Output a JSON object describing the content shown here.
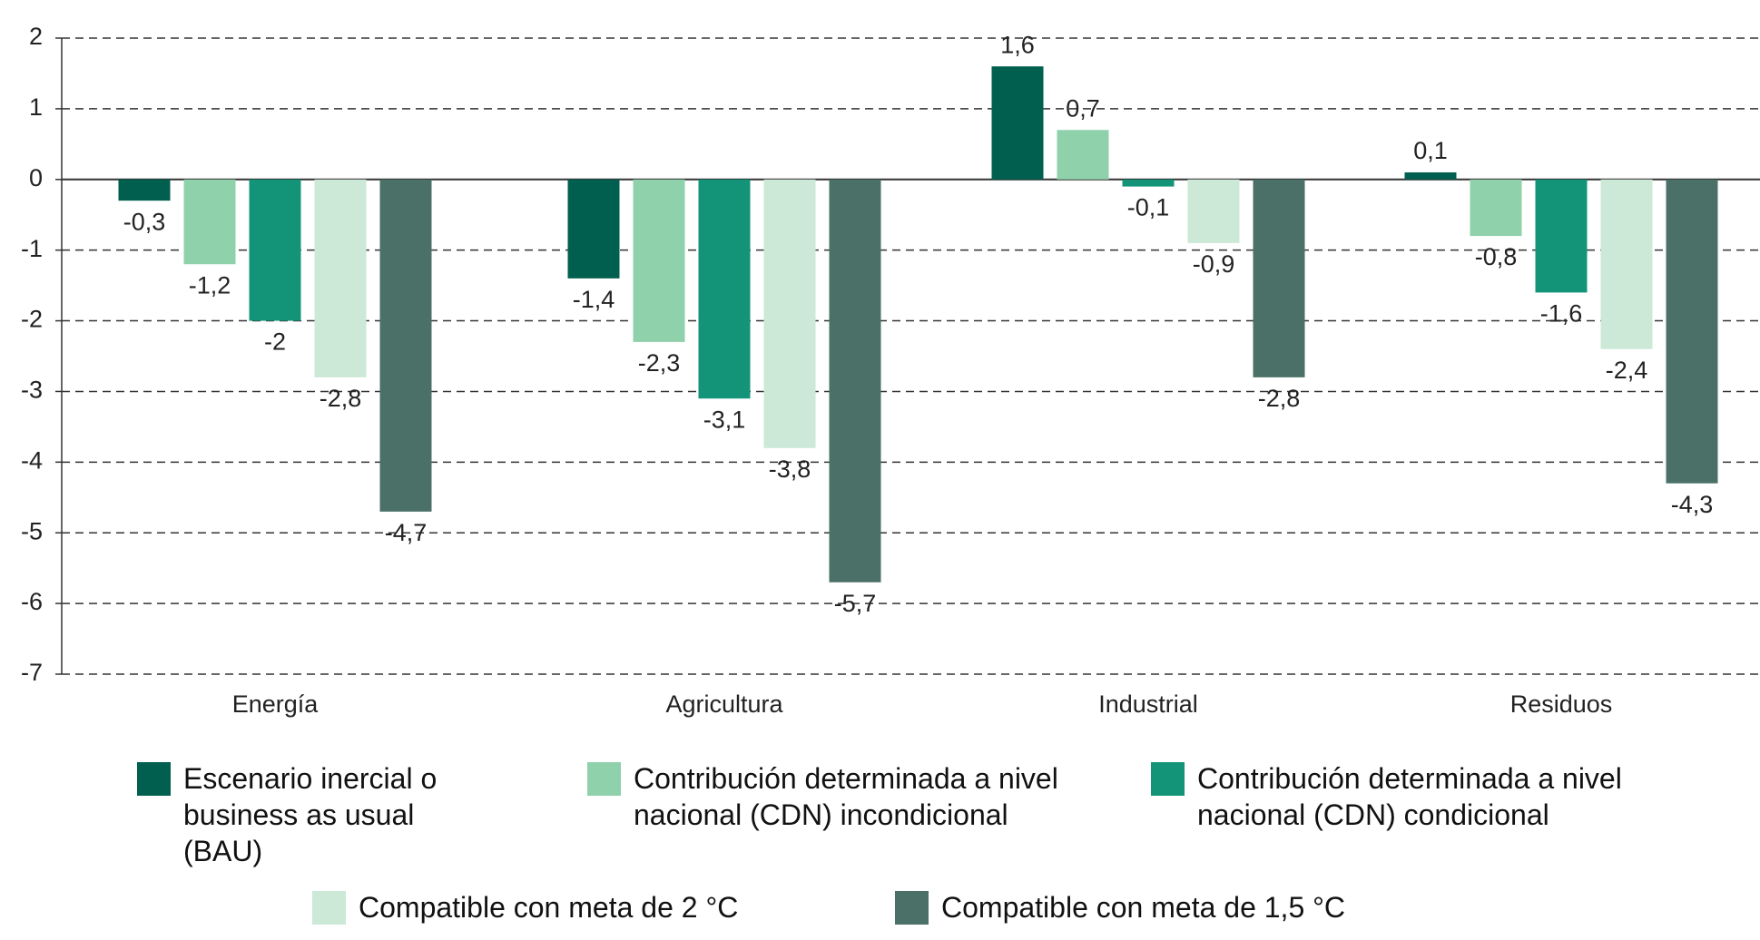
{
  "chart_data": {
    "type": "bar",
    "categories": [
      "Energía",
      "Agricultura",
      "Industrial",
      "Residuos"
    ],
    "series": [
      {
        "name": "Escenario inercial o business as usual (BAU)",
        "color": "#005f4e",
        "values": [
          -0.3,
          -1.4,
          1.6,
          0.1
        ],
        "value_labels": [
          "-0,3",
          "-1,4",
          "1,6",
          "0,1"
        ]
      },
      {
        "name": "Contribución determinada a nivel nacional (CDN) incondicional",
        "color": "#8fd1aa",
        "values": [
          -1.2,
          -2.3,
          0.7,
          -0.8
        ],
        "value_labels": [
          "-1,2",
          "-2,3",
          "0,7",
          "-0,8"
        ]
      },
      {
        "name": "Contribución determinada a nivel nacional (CDN) condicional",
        "color": "#139479",
        "values": [
          -2,
          -3.1,
          -0.1,
          -1.6
        ],
        "value_labels": [
          "-2",
          "-3,1",
          "-0,1",
          "-1,6"
        ]
      },
      {
        "name": "Compatible con meta de 2 °C",
        "color": "#cce8d6",
        "values": [
          -2.8,
          -3.8,
          -0.9,
          -2.4
        ],
        "value_labels": [
          "-2,8",
          "-3,8",
          "-0,9",
          "-2,4"
        ]
      },
      {
        "name": "Compatible con meta de 1,5 °C",
        "color": "#4a7067",
        "values": [
          -4.7,
          -5.7,
          -2.8,
          -4.3
        ],
        "value_labels": [
          "-4,7",
          "-5,7",
          "-2,8",
          "-4,3"
        ]
      }
    ],
    "ylim": [
      -7,
      2
    ],
    "yticks": [
      2,
      1,
      0,
      -1,
      -2,
      -3,
      -4,
      -5,
      -6,
      -7
    ],
    "grid": true
  }
}
